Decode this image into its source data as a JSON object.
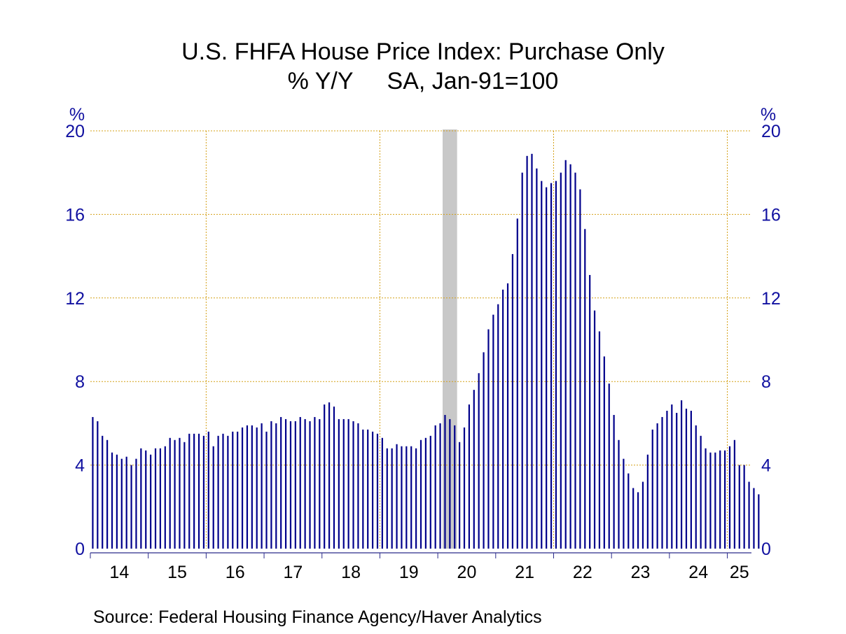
{
  "chart_data": {
    "type": "bar",
    "title": "U.S. FHFA House Price Index: Purchase Only",
    "subtitle_left": "% Y/Y",
    "subtitle_right": "SA, Jan-91=100",
    "ylabel_left": "%",
    "ylabel_right": "%",
    "ylim": [
      0,
      20
    ],
    "yticks": [
      0,
      4,
      8,
      12,
      16,
      20
    ],
    "x_tick_labels": [
      "14",
      "15",
      "16",
      "17",
      "18",
      "19",
      "20",
      "21",
      "22",
      "23",
      "24",
      "25"
    ],
    "start_month": "2014-01",
    "frequency": "monthly",
    "grid": true,
    "recession_shading": {
      "start": "2020-02",
      "end": "2020-04",
      "color": "#c8c8c8"
    },
    "colors": {
      "bar": "#00008b",
      "axis_text": "#1010a0",
      "grid": "#d4a017"
    },
    "series": [
      {
        "values": [
          6.3,
          6.1,
          5.4,
          5.2,
          4.6,
          4.5,
          4.3,
          4.4,
          4.0,
          4.3,
          4.8,
          4.7,
          4.5,
          4.8,
          4.8,
          4.9,
          5.3,
          5.2,
          5.3,
          5.1,
          5.5,
          5.5,
          5.5,
          5.4,
          5.6,
          4.9,
          5.4,
          5.5,
          5.4,
          5.6,
          5.6,
          5.8,
          5.9,
          5.9,
          5.8,
          6.0,
          5.6,
          6.1,
          6.0,
          6.3,
          6.2,
          6.1,
          6.1,
          6.3,
          6.2,
          6.1,
          6.3,
          6.2,
          6.9,
          7.0,
          6.8,
          6.2,
          6.2,
          6.2,
          6.1,
          6.0,
          5.7,
          5.7,
          5.6,
          5.5,
          5.3,
          4.8,
          4.8,
          5.0,
          4.9,
          4.9,
          4.9,
          4.8,
          5.2,
          5.3,
          5.4,
          5.9,
          6.0,
          6.4,
          6.2,
          5.9,
          5.1,
          5.8,
          6.9,
          7.6,
          8.4,
          9.4,
          10.5,
          11.2,
          11.7,
          12.4,
          12.7,
          14.1,
          15.8,
          18.0,
          18.8,
          18.9,
          18.2,
          17.6,
          17.3,
          17.5,
          17.6,
          18.0,
          18.6,
          18.4,
          18.0,
          17.2,
          15.3,
          13.1,
          11.4,
          10.4,
          9.2,
          7.9,
          6.4,
          5.2,
          4.3,
          3.6,
          2.9,
          2.7,
          3.2,
          4.5,
          5.7,
          6.0,
          6.3,
          6.6,
          6.9,
          6.5,
          7.1,
          6.7,
          6.6,
          5.9,
          5.4,
          4.8,
          4.6,
          4.6,
          4.7,
          4.7,
          4.9,
          5.2,
          4.0,
          4.0,
          3.2,
          2.9,
          2.6
        ]
      }
    ]
  },
  "source": "Source:  Federal Housing Finance Agency/Haver Analytics"
}
